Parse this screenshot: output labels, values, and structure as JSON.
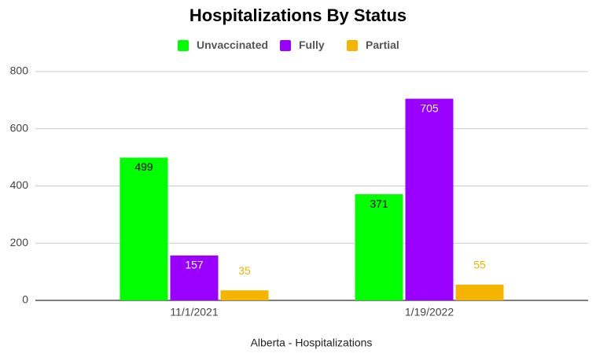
{
  "chart_data": {
    "type": "bar",
    "title": "Hospitalizations By Status",
    "x_label": "Alberta - Hospitalizations",
    "categories": [
      "11/1/2021",
      "1/19/2022"
    ],
    "series": [
      {
        "name": "Unvaccinated",
        "color": "#00ff00",
        "values": [
          499,
          371
        ]
      },
      {
        "name": "Fully",
        "color": "#9900ff",
        "values": [
          157,
          705
        ]
      },
      {
        "name": "Partial",
        "color": "#f4b400",
        "values": [
          35,
          55
        ]
      }
    ],
    "ylim": [
      0,
      800
    ],
    "yticks": [
      0,
      200,
      400,
      600,
      800
    ],
    "grid": true,
    "legend": "top"
  }
}
